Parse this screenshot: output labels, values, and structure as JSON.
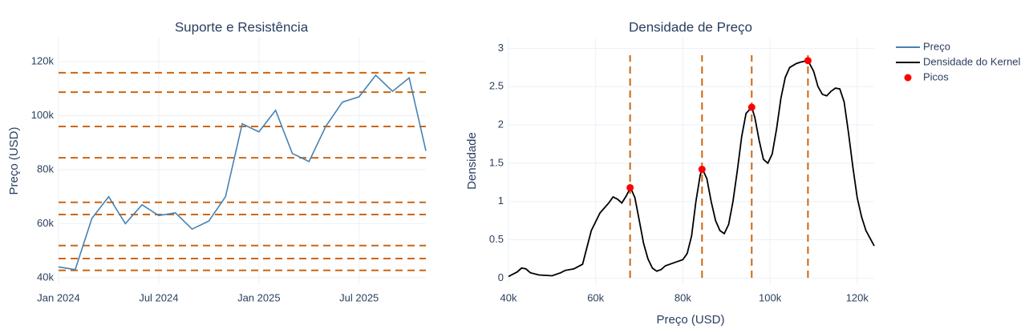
{
  "chart_data": [
    {
      "type": "line",
      "title": "Suporte e Resistência",
      "y_label": "Preço (USD)",
      "x": [
        "2024-01",
        "2024-02",
        "2024-03",
        "2024-04",
        "2024-05",
        "2024-06",
        "2024-07",
        "2024-08",
        "2024-09",
        "2024-10",
        "2024-11",
        "2024-12",
        "2025-01",
        "2025-02",
        "2025-03",
        "2025-04",
        "2025-05",
        "2025-06",
        "2025-07",
        "2025-08",
        "2025-09",
        "2025-10",
        "2025-11"
      ],
      "series": [
        {
          "name": "Preço",
          "color": "#4682b4",
          "values": [
            44000,
            43000,
            62000,
            70000,
            60000,
            67000,
            63000,
            64000,
            58000,
            61000,
            70000,
            97000,
            94000,
            102000,
            86000,
            83000,
            96000,
            105000,
            107000,
            115000,
            109000,
            114000,
            87000
          ]
        }
      ],
      "xlim": [
        "2024-01",
        "2025-11"
      ],
      "xticks": [
        {
          "value": "2024-01",
          "label": "Jan 2024"
        },
        {
          "value": "2024-07",
          "label": "Jul 2024"
        },
        {
          "value": "2025-01",
          "label": "Jan 2025"
        },
        {
          "value": "2025-07",
          "label": "Jul 2025"
        }
      ],
      "ylim": [
        37600,
        128900
      ],
      "yticks": [
        {
          "value": 40000,
          "label": "40k"
        },
        {
          "value": 60000,
          "label": "60k"
        },
        {
          "value": 80000,
          "label": "80k"
        },
        {
          "value": 100000,
          "label": "100k"
        },
        {
          "value": 120000,
          "label": "120k"
        }
      ],
      "hlines": {
        "color": "#cc6611",
        "values": [
          115900,
          108700,
          96000,
          84400,
          67900,
          63400,
          51900,
          47100,
          42700
        ]
      },
      "grid": true
    },
    {
      "type": "kde",
      "title": "Densidade de Preço",
      "x_label": "Preço (USD)",
      "y_label": "Densidade",
      "x": [
        40000,
        42000,
        43000,
        44000,
        45000,
        47000,
        50000,
        52000,
        53000,
        55000,
        57000,
        58000,
        59000,
        61000,
        63000,
        64000,
        65000,
        66000,
        67000,
        68000,
        69000,
        70000,
        71000,
        72000,
        73000,
        74000,
        75000,
        76000,
        78000,
        80000,
        81000,
        82000,
        83000,
        84000,
        84500,
        85500,
        86500,
        87500,
        88500,
        89500,
        90500,
        91500,
        92500,
        93500,
        94500,
        95800,
        96500,
        97500,
        98500,
        99500,
        100500,
        101500,
        102500,
        103500,
        104500,
        106000,
        107000,
        108700,
        110000,
        111000,
        112000,
        113000,
        114000,
        115000,
        116000,
        117000,
        118000,
        119000,
        120000,
        121000,
        122000,
        123900
      ],
      "series": [
        {
          "name": "Densidade do Kernel",
          "color": "#000000",
          "values": [
            0.02,
            0.08,
            0.13,
            0.12,
            0.07,
            0.04,
            0.03,
            0.07,
            0.1,
            0.12,
            0.18,
            0.4,
            0.62,
            0.85,
            0.98,
            1.06,
            1.03,
            0.98,
            1.07,
            1.18,
            1.05,
            0.75,
            0.45,
            0.25,
            0.13,
            0.09,
            0.11,
            0.16,
            0.2,
            0.24,
            0.32,
            0.55,
            1.0,
            1.35,
            1.42,
            1.3,
            1.0,
            0.75,
            0.62,
            0.58,
            0.7,
            1.0,
            1.4,
            1.85,
            2.15,
            2.23,
            2.1,
            1.8,
            1.55,
            1.5,
            1.62,
            1.95,
            2.35,
            2.62,
            2.75,
            2.8,
            2.82,
            2.84,
            2.7,
            2.5,
            2.4,
            2.38,
            2.44,
            2.48,
            2.47,
            2.3,
            1.9,
            1.45,
            1.05,
            0.8,
            0.62,
            0.42
          ]
        }
      ],
      "peaks": {
        "name": "Picos",
        "color": "#ff0000",
        "line_color": "#cc6611",
        "x": [
          67900,
          84400,
          95800,
          108700
        ],
        "values": [
          1.18,
          1.42,
          2.23,
          2.84
        ]
      },
      "xlim": [
        40000,
        123900
      ],
      "xticks": [
        {
          "value": 40000,
          "label": "40k"
        },
        {
          "value": 60000,
          "label": "60k"
        },
        {
          "value": 80000,
          "label": "80k"
        },
        {
          "value": 100000,
          "label": "100k"
        },
        {
          "value": 120000,
          "label": "120k"
        }
      ],
      "ylim": [
        -0.08,
        3.14
      ],
      "yticks": [
        0,
        0.5,
        1,
        1.5,
        2,
        2.5,
        3
      ],
      "grid": true,
      "legend": "right"
    }
  ]
}
